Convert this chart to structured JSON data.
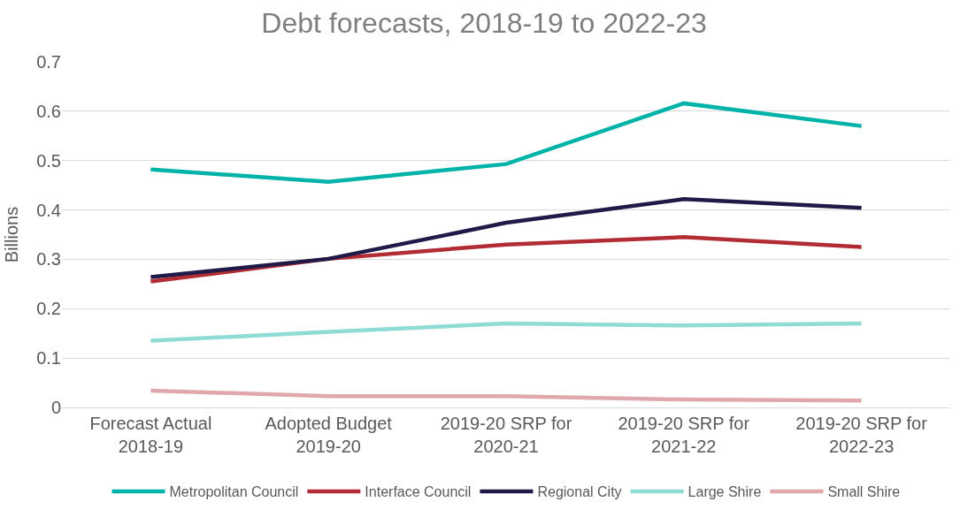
{
  "chart_data": {
    "type": "line",
    "title": "Debt forecasts, 2018-19 to 2022-23",
    "ylabel": "Billions",
    "categories": [
      "Forecast Actual 2018-19",
      "Adopted Budget 2019-20",
      "2019-20 SRP for 2020-21",
      "2019-20 SRP for 2021-22",
      "2019-20 SRP for 2022-23"
    ],
    "series": [
      {
        "name": "Metropolitan Council",
        "color": "#00b3a9",
        "values": [
          0.482,
          0.457,
          0.493,
          0.616,
          0.57
        ]
      },
      {
        "name": "Interface Council",
        "color": "#b22d33",
        "values": [
          0.255,
          0.301,
          0.33,
          0.345,
          0.325
        ]
      },
      {
        "name": "Regional City",
        "color": "#1f1a48",
        "values": [
          0.264,
          0.301,
          0.374,
          0.422,
          0.404
        ]
      },
      {
        "name": "Large Shire",
        "color": "#8fdcd5",
        "values": [
          0.135,
          0.153,
          0.17,
          0.166,
          0.17
        ]
      },
      {
        "name": "Small Shire",
        "color": "#e0a8aa",
        "values": [
          0.034,
          0.023,
          0.023,
          0.016,
          0.014
        ]
      }
    ],
    "ylim": [
      0,
      0.7
    ],
    "yticks": [
      {
        "value": 0,
        "label": "0"
      },
      0.1,
      0.2,
      0.3,
      0.4,
      0.5,
      0.6,
      0.7
    ],
    "grid": "y",
    "legend": "bottom",
    "marker": "none",
    "line_style": "solid"
  }
}
